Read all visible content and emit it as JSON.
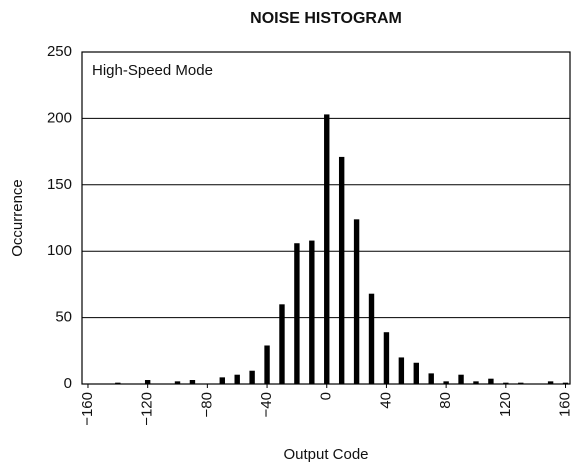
{
  "chart_data": {
    "type": "bar",
    "title": "NOISE HISTOGRAM",
    "annotation": "High-Speed Mode",
    "x_label": "Output Code",
    "y_label": "Occurrence",
    "x": [
      -160,
      -150,
      -140,
      -130,
      -120,
      -110,
      -100,
      -90,
      -80,
      -70,
      -60,
      -50,
      -40,
      -30,
      -20,
      -10,
      0,
      10,
      20,
      30,
      40,
      50,
      60,
      70,
      80,
      90,
      100,
      110,
      120,
      130,
      140,
      150,
      160
    ],
    "values": [
      0,
      0,
      1,
      0,
      3,
      0,
      2,
      3,
      0,
      5,
      7,
      10,
      29,
      60,
      106,
      108,
      203,
      171,
      124,
      68,
      39,
      20,
      16,
      8,
      2,
      7,
      2,
      4,
      1,
      1,
      0,
      2,
      1
    ],
    "color": "#000000",
    "xlim": [
      -164,
      163
    ],
    "xticks": [
      {
        "value": -160,
        "label": "−160"
      },
      {
        "value": -120,
        "label": "−120"
      },
      {
        "value": -80,
        "label": "−80"
      },
      {
        "value": -40,
        "label": "−40"
      },
      0,
      40,
      80,
      120,
      160
    ],
    "ylim": [
      0,
      250
    ],
    "yticks": [
      0,
      50,
      100,
      150,
      200,
      250
    ],
    "grid": true
  }
}
